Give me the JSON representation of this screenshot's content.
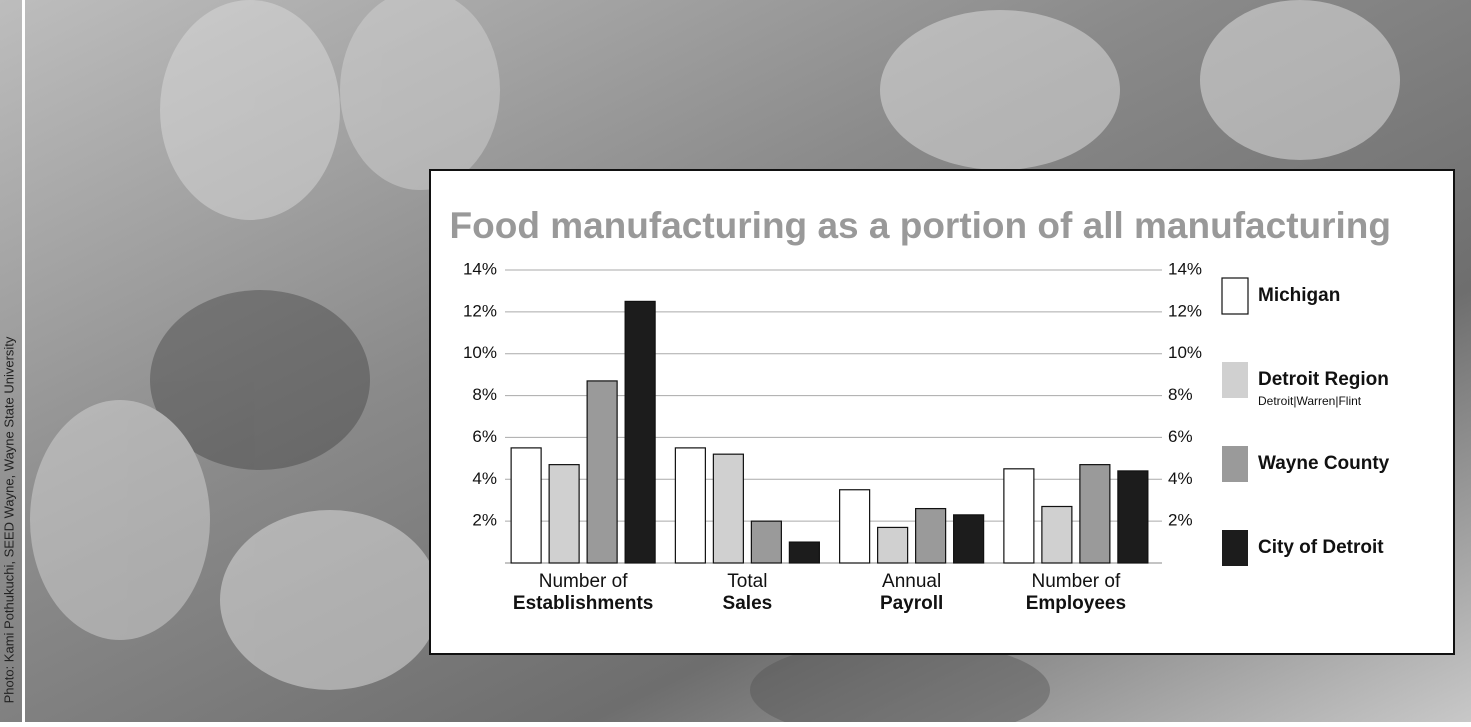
{
  "chart_data": {
    "type": "bar",
    "title": "Food manufacturing as a portion of all manufacturing",
    "credit": "Photo: Kami Pothukuchi, SEED Wayne, Wayne State University",
    "categories": [
      [
        "Number of",
        "Establishments"
      ],
      [
        "Total",
        "Sales"
      ],
      [
        "Annual",
        "Payroll"
      ],
      [
        "Number of",
        "Employees"
      ]
    ],
    "series": [
      {
        "name": "Michigan",
        "color": "#ffffff",
        "values": [
          5.5,
          5.5,
          3.5,
          4.5
        ]
      },
      {
        "name": "Detroit Region",
        "sublabel": "Detroit|Warren|Flint",
        "color": "#d0d0d0",
        "values": [
          4.7,
          5.2,
          1.7,
          2.7
        ]
      },
      {
        "name": "Wayne County",
        "color": "#9a9a9a",
        "values": [
          8.7,
          2.0,
          2.6,
          4.7
        ]
      },
      {
        "name": "City of Detroit",
        "color": "#1c1c1c",
        "values": [
          12.5,
          1.0,
          2.3,
          4.4
        ]
      }
    ],
    "ylim": [
      0,
      14
    ],
    "yticks": [
      {
        "value": 2,
        "label": "2%"
      },
      {
        "value": 4,
        "label": "4%"
      },
      {
        "value": 6,
        "label": "6%"
      },
      {
        "value": 8,
        "label": "8%"
      },
      {
        "value": 10,
        "label": "10%"
      },
      {
        "value": 12,
        "label": "12%"
      },
      {
        "value": 14,
        "label": "14%"
      }
    ],
    "grid": true
  }
}
